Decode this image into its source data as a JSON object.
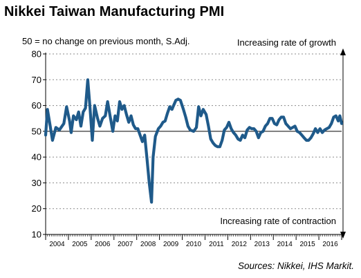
{
  "header": {
    "title": "Nikkei Taiwan Manufacturing PMI",
    "subtitle": "50 = no change on previous month, S.Adj."
  },
  "footer": {
    "source": "Sources: Nikkei, IHS Markit."
  },
  "colors": {
    "series": "#1f5a8a",
    "baseline": "#000000",
    "grid": "#8a8a8a",
    "axis": "#000000"
  },
  "chart_data": {
    "type": "line",
    "title": "Nikkei Taiwan Manufacturing PMI",
    "subtitle": "50 = no change on previous month, S.Adj.",
    "xlabel": "",
    "ylabel": "",
    "ylim": [
      10,
      80
    ],
    "yticks": [
      10,
      20,
      30,
      40,
      50,
      60,
      70,
      80
    ],
    "xlim": [
      2004.0,
      2017.0
    ],
    "year_labels": [
      "2004",
      "2005",
      "2006",
      "2007",
      "2008",
      "2009",
      "2010",
      "2011",
      "2012",
      "2013",
      "2014",
      "2015",
      "2016"
    ],
    "baseline": 50,
    "grid": "horizontal-dashed",
    "annotations": {
      "top": "Increasing rate of growth",
      "bottom": "Increasing rate of contraction"
    },
    "series": [
      {
        "values": [
          [
            2004.0,
            48.5
          ],
          [
            2004.08,
            58.5
          ],
          [
            2004.2,
            52.0
          ],
          [
            2004.3,
            46.5
          ],
          [
            2004.45,
            51.5
          ],
          [
            2004.6,
            50.5
          ],
          [
            2004.8,
            53.0
          ],
          [
            2004.92,
            59.5
          ],
          [
            2005.05,
            54.0
          ],
          [
            2005.12,
            49.5
          ],
          [
            2005.22,
            56.0
          ],
          [
            2005.35,
            54.5
          ],
          [
            2005.45,
            57.5
          ],
          [
            2005.55,
            52.0
          ],
          [
            2005.65,
            57.5
          ],
          [
            2005.75,
            59.0
          ],
          [
            2005.85,
            70.0
          ],
          [
            2005.95,
            59.0
          ],
          [
            2006.05,
            46.5
          ],
          [
            2006.15,
            60.0
          ],
          [
            2006.28,
            55.0
          ],
          [
            2006.38,
            52.0
          ],
          [
            2006.5,
            55.0
          ],
          [
            2006.62,
            56.0
          ],
          [
            2006.72,
            61.5
          ],
          [
            2006.85,
            55.0
          ],
          [
            2006.95,
            50.0
          ],
          [
            2007.05,
            56.0
          ],
          [
            2007.15,
            54.0
          ],
          [
            2007.25,
            61.5
          ],
          [
            2007.35,
            58.5
          ],
          [
            2007.45,
            60.0
          ],
          [
            2007.55,
            56.5
          ],
          [
            2007.65,
            53.5
          ],
          [
            2007.75,
            56.0
          ],
          [
            2007.85,
            52.5
          ],
          [
            2007.95,
            51.0
          ],
          [
            2008.05,
            51.0
          ],
          [
            2008.15,
            48.5
          ],
          [
            2008.25,
            46.0
          ],
          [
            2008.35,
            48.5
          ],
          [
            2008.45,
            39.5
          ],
          [
            2008.55,
            30.0
          ],
          [
            2008.65,
            22.5
          ],
          [
            2008.72,
            40.0
          ],
          [
            2008.82,
            48.0
          ],
          [
            2008.95,
            51.0
          ],
          [
            2009.05,
            52.0
          ],
          [
            2009.15,
            53.5
          ],
          [
            2009.25,
            54.0
          ],
          [
            2009.35,
            57.0
          ],
          [
            2009.45,
            59.5
          ],
          [
            2009.55,
            58.5
          ],
          [
            2009.62,
            60.0
          ],
          [
            2009.72,
            62.0
          ],
          [
            2009.82,
            62.5
          ],
          [
            2009.92,
            62.0
          ],
          [
            2010.05,
            58.5
          ],
          [
            2010.15,
            55.5
          ],
          [
            2010.25,
            52.0
          ],
          [
            2010.35,
            50.5
          ],
          [
            2010.5,
            50.0
          ],
          [
            2010.62,
            51.5
          ],
          [
            2010.72,
            59.5
          ],
          [
            2010.82,
            56.0
          ],
          [
            2010.92,
            58.5
          ],
          [
            2011.05,
            56.5
          ],
          [
            2011.15,
            52.0
          ],
          [
            2011.25,
            47.0
          ],
          [
            2011.35,
            45.5
          ],
          [
            2011.45,
            44.5
          ],
          [
            2011.55,
            44.0
          ],
          [
            2011.65,
            44.0
          ],
          [
            2011.75,
            46.5
          ],
          [
            2011.85,
            50.5
          ],
          [
            2011.95,
            51.5
          ],
          [
            2012.05,
            53.5
          ],
          [
            2012.15,
            51.0
          ],
          [
            2012.25,
            49.5
          ],
          [
            2012.35,
            48.5
          ],
          [
            2012.45,
            47.0
          ],
          [
            2012.55,
            46.5
          ],
          [
            2012.65,
            48.5
          ],
          [
            2012.75,
            47.5
          ],
          [
            2012.85,
            50.5
          ],
          [
            2012.95,
            51.5
          ],
          [
            2013.05,
            51.0
          ],
          [
            2013.15,
            51.0
          ],
          [
            2013.25,
            50.0
          ],
          [
            2013.35,
            47.5
          ],
          [
            2013.45,
            49.5
          ],
          [
            2013.55,
            50.0
          ],
          [
            2013.65,
            52.0
          ],
          [
            2013.75,
            53.0
          ],
          [
            2013.85,
            55.0
          ],
          [
            2013.95,
            55.0
          ],
          [
            2014.05,
            53.0
          ],
          [
            2014.15,
            52.5
          ],
          [
            2014.25,
            54.5
          ],
          [
            2014.35,
            55.5
          ],
          [
            2014.45,
            55.5
          ],
          [
            2014.55,
            53.0
          ],
          [
            2014.65,
            52.0
          ],
          [
            2014.75,
            51.0
          ],
          [
            2014.85,
            51.5
          ],
          [
            2014.95,
            52.0
          ],
          [
            2015.05,
            50.0
          ],
          [
            2015.15,
            49.5
          ],
          [
            2015.25,
            48.5
          ],
          [
            2015.35,
            47.5
          ],
          [
            2015.45,
            46.5
          ],
          [
            2015.55,
            46.5
          ],
          [
            2015.65,
            47.5
          ],
          [
            2015.75,
            49.0
          ],
          [
            2015.85,
            51.0
          ],
          [
            2015.95,
            49.5
          ],
          [
            2016.05,
            51.0
          ],
          [
            2016.15,
            49.5
          ],
          [
            2016.25,
            50.5
          ],
          [
            2016.35,
            51.0
          ],
          [
            2016.45,
            51.5
          ],
          [
            2016.55,
            53.0
          ],
          [
            2016.65,
            55.5
          ],
          [
            2016.75,
            56.0
          ],
          [
            2016.85,
            54.0
          ],
          [
            2016.92,
            56.0
          ],
          [
            2017.0,
            53.0
          ]
        ]
      }
    ]
  }
}
